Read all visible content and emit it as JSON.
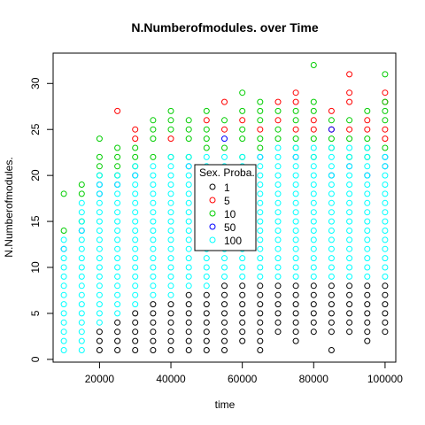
{
  "chart_data": {
    "type": "scatter",
    "title": "N.Numberofmodules. over Time",
    "xlabel": "time",
    "ylabel": "N.Numberofmodules.",
    "xlim": [
      7000,
      103000
    ],
    "ylim": [
      -0.3,
      33.3
    ],
    "x_ticks": [
      20000,
      40000,
      60000,
      80000,
      100000
    ],
    "x_tick_labels": [
      "20000",
      "40000",
      "60000",
      "80000",
      "100000"
    ],
    "y_ticks": [
      0,
      5,
      10,
      15,
      20,
      25,
      30
    ],
    "y_tick_labels": [
      "0",
      "5",
      "10",
      "15",
      "20",
      "25",
      "30"
    ],
    "grid": false,
    "marker": "open-circle",
    "legend": {
      "title": "Sex. Proba.",
      "placement": "center",
      "entries": [
        {
          "label": "1",
          "color": "#000000"
        },
        {
          "label": "5",
          "color": "#FF0000"
        },
        {
          "label": "10",
          "color": "#00CD00"
        },
        {
          "label": "50",
          "color": "#0000FF"
        },
        {
          "label": "100",
          "color": "#00FFFF"
        }
      ]
    },
    "series": [
      {
        "name": "1",
        "color": "#000000",
        "points": [
          [
            20000,
            1
          ],
          [
            20000,
            2
          ],
          [
            20000,
            3
          ],
          [
            25000,
            1
          ],
          [
            25000,
            2
          ],
          [
            25000,
            3
          ],
          [
            25000,
            4
          ],
          [
            30000,
            1
          ],
          [
            30000,
            2
          ],
          [
            30000,
            3
          ],
          [
            30000,
            4
          ],
          [
            30000,
            5
          ],
          [
            35000,
            1
          ],
          [
            35000,
            2
          ],
          [
            35000,
            3
          ],
          [
            35000,
            4
          ],
          [
            35000,
            5
          ],
          [
            35000,
            6
          ],
          [
            40000,
            1
          ],
          [
            40000,
            2
          ],
          [
            40000,
            3
          ],
          [
            40000,
            4
          ],
          [
            40000,
            5
          ],
          [
            40000,
            6
          ],
          [
            45000,
            1
          ],
          [
            45000,
            2
          ],
          [
            45000,
            3
          ],
          [
            45000,
            4
          ],
          [
            45000,
            5
          ],
          [
            45000,
            6
          ],
          [
            45000,
            7
          ],
          [
            50000,
            1
          ],
          [
            50000,
            2
          ],
          [
            50000,
            3
          ],
          [
            50000,
            4
          ],
          [
            50000,
            5
          ],
          [
            50000,
            6
          ],
          [
            50000,
            7
          ],
          [
            55000,
            1
          ],
          [
            55000,
            2
          ],
          [
            55000,
            3
          ],
          [
            55000,
            4
          ],
          [
            55000,
            5
          ],
          [
            55000,
            6
          ],
          [
            55000,
            7
          ],
          [
            55000,
            8
          ],
          [
            60000,
            2
          ],
          [
            60000,
            3
          ],
          [
            60000,
            4
          ],
          [
            60000,
            5
          ],
          [
            60000,
            6
          ],
          [
            60000,
            7
          ],
          [
            60000,
            8
          ],
          [
            65000,
            1
          ],
          [
            65000,
            2
          ],
          [
            65000,
            3
          ],
          [
            65000,
            4
          ],
          [
            65000,
            5
          ],
          [
            65000,
            6
          ],
          [
            65000,
            7
          ],
          [
            65000,
            8
          ],
          [
            70000,
            3
          ],
          [
            70000,
            4
          ],
          [
            70000,
            5
          ],
          [
            70000,
            6
          ],
          [
            70000,
            7
          ],
          [
            70000,
            8
          ],
          [
            75000,
            2
          ],
          [
            75000,
            3
          ],
          [
            75000,
            4
          ],
          [
            75000,
            5
          ],
          [
            75000,
            6
          ],
          [
            75000,
            7
          ],
          [
            75000,
            8
          ],
          [
            80000,
            3
          ],
          [
            80000,
            4
          ],
          [
            80000,
            5
          ],
          [
            80000,
            6
          ],
          [
            80000,
            7
          ],
          [
            80000,
            8
          ],
          [
            85000,
            1
          ],
          [
            85000,
            3
          ],
          [
            85000,
            4
          ],
          [
            85000,
            5
          ],
          [
            85000,
            6
          ],
          [
            85000,
            7
          ],
          [
            85000,
            8
          ],
          [
            90000,
            3
          ],
          [
            90000,
            4
          ],
          [
            90000,
            5
          ],
          [
            90000,
            6
          ],
          [
            90000,
            7
          ],
          [
            90000,
            8
          ],
          [
            95000,
            2
          ],
          [
            95000,
            3
          ],
          [
            95000,
            4
          ],
          [
            95000,
            5
          ],
          [
            95000,
            6
          ],
          [
            95000,
            7
          ],
          [
            95000,
            8
          ],
          [
            100000,
            3
          ],
          [
            100000,
            4
          ],
          [
            100000,
            5
          ],
          [
            100000,
            6
          ],
          [
            100000,
            7
          ],
          [
            100000,
            8
          ]
        ]
      },
      {
        "name": "5",
        "color": "#FF0000",
        "points": [
          [
            25000,
            27
          ],
          [
            30000,
            24
          ],
          [
            30000,
            25
          ],
          [
            40000,
            24
          ],
          [
            50000,
            26
          ],
          [
            55000,
            25
          ],
          [
            55000,
            28
          ],
          [
            60000,
            26
          ],
          [
            65000,
            25
          ],
          [
            70000,
            26
          ],
          [
            70000,
            28
          ],
          [
            75000,
            25
          ],
          [
            75000,
            28
          ],
          [
            75000,
            29
          ],
          [
            80000,
            25
          ],
          [
            80000,
            26
          ],
          [
            85000,
            25
          ],
          [
            85000,
            27
          ],
          [
            90000,
            25
          ],
          [
            90000,
            28
          ],
          [
            90000,
            29
          ],
          [
            90000,
            31
          ],
          [
            95000,
            25
          ],
          [
            95000,
            26
          ],
          [
            100000,
            24
          ],
          [
            100000,
            25
          ],
          [
            100000,
            28
          ],
          [
            100000,
            29
          ]
        ]
      },
      {
        "name": "10",
        "color": "#00CD00",
        "points": [
          [
            10000,
            14
          ],
          [
            10000,
            18
          ],
          [
            15000,
            15
          ],
          [
            15000,
            18
          ],
          [
            15000,
            19
          ],
          [
            20000,
            20
          ],
          [
            20000,
            21
          ],
          [
            20000,
            22
          ],
          [
            20000,
            24
          ],
          [
            25000,
            20
          ],
          [
            25000,
            21
          ],
          [
            25000,
            22
          ],
          [
            25000,
            23
          ],
          [
            30000,
            21
          ],
          [
            30000,
            22
          ],
          [
            30000,
            23
          ],
          [
            35000,
            22
          ],
          [
            35000,
            24
          ],
          [
            35000,
            25
          ],
          [
            35000,
            26
          ],
          [
            40000,
            22
          ],
          [
            40000,
            25
          ],
          [
            40000,
            26
          ],
          [
            40000,
            27
          ],
          [
            45000,
            22
          ],
          [
            45000,
            24
          ],
          [
            45000,
            25
          ],
          [
            45000,
            26
          ],
          [
            50000,
            23
          ],
          [
            50000,
            24
          ],
          [
            50000,
            25
          ],
          [
            50000,
            27
          ],
          [
            55000,
            23
          ],
          [
            55000,
            26
          ],
          [
            60000,
            22
          ],
          [
            60000,
            24
          ],
          [
            60000,
            25
          ],
          [
            60000,
            27
          ],
          [
            60000,
            29
          ],
          [
            65000,
            23
          ],
          [
            65000,
            24
          ],
          [
            65000,
            26
          ],
          [
            65000,
            27
          ],
          [
            65000,
            28
          ],
          [
            70000,
            24
          ],
          [
            70000,
            25
          ],
          [
            70000,
            27
          ],
          [
            75000,
            23
          ],
          [
            75000,
            24
          ],
          [
            75000,
            26
          ],
          [
            75000,
            27
          ],
          [
            80000,
            22
          ],
          [
            80000,
            24
          ],
          [
            80000,
            27
          ],
          [
            80000,
            28
          ],
          [
            80000,
            32
          ],
          [
            85000,
            23
          ],
          [
            85000,
            24
          ],
          [
            85000,
            26
          ],
          [
            90000,
            22
          ],
          [
            90000,
            24
          ],
          [
            90000,
            26
          ],
          [
            95000,
            22
          ],
          [
            95000,
            23
          ],
          [
            95000,
            24
          ],
          [
            95000,
            27
          ],
          [
            100000,
            23
          ],
          [
            100000,
            26
          ],
          [
            100000,
            27
          ],
          [
            100000,
            28
          ],
          [
            100000,
            31
          ]
        ]
      },
      {
        "name": "50",
        "color": "#0000FF",
        "points": [
          [
            10000,
            12
          ],
          [
            15000,
            14
          ],
          [
            20000,
            18
          ],
          [
            20000,
            19
          ],
          [
            25000,
            19
          ],
          [
            30000,
            20
          ],
          [
            45000,
            21
          ],
          [
            55000,
            24
          ],
          [
            65000,
            22
          ],
          [
            75000,
            22
          ],
          [
            85000,
            20
          ],
          [
            85000,
            25
          ],
          [
            90000,
            21
          ],
          [
            95000,
            20
          ],
          [
            100000,
            21
          ],
          [
            100000,
            22
          ]
        ]
      },
      {
        "name": "100",
        "color": "#00FFFF",
        "ranges": [
          [
            10000,
            1,
            13
          ],
          [
            15000,
            1,
            17
          ],
          [
            20000,
            4,
            20
          ],
          [
            25000,
            5,
            20
          ],
          [
            30000,
            6,
            21
          ],
          [
            35000,
            7,
            21
          ],
          [
            40000,
            7,
            22
          ],
          [
            45000,
            8,
            22
          ],
          [
            50000,
            8,
            22
          ],
          [
            55000,
            9,
            22
          ],
          [
            60000,
            9,
            22
          ],
          [
            65000,
            9,
            22
          ],
          [
            70000,
            9,
            23
          ],
          [
            75000,
            9,
            23
          ],
          [
            80000,
            9,
            23
          ],
          [
            85000,
            9,
            23
          ],
          [
            90000,
            9,
            23
          ],
          [
            95000,
            9,
            23
          ],
          [
            100000,
            9,
            22
          ]
        ]
      }
    ]
  }
}
